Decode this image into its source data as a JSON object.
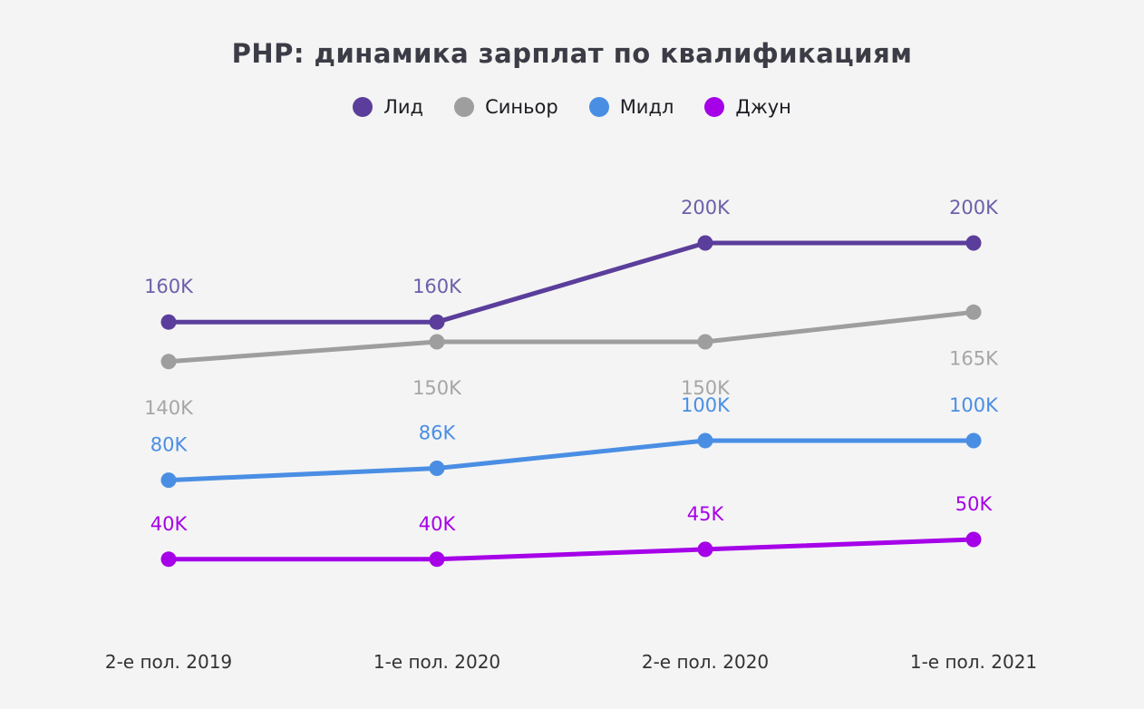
{
  "title": "PHP: динамика зарплат по квалификациям",
  "chart_data": {
    "type": "line",
    "title": "PHP: динамика зарплат по квалификациям",
    "categories": [
      "2-е пол. 2019",
      "1-е пол. 2020",
      "2-е пол. 2020",
      "1-е пол. 2021"
    ],
    "unit": "K",
    "series": [
      {
        "name": "Лид",
        "color": "#5b3e9b",
        "label_color": "#6c60aa",
        "values": [
          160,
          160,
          200,
          200
        ],
        "labels": [
          "160K",
          "160K",
          "200K",
          "200K"
        ],
        "label_side": "above"
      },
      {
        "name": "Синьор",
        "color": "#9e9e9e",
        "label_color": "#a6a6a6",
        "values": [
          140,
          150,
          150,
          165
        ],
        "labels": [
          "140K",
          "150K",
          "150K",
          "165K"
        ],
        "label_side": "below"
      },
      {
        "name": "Мидл",
        "color": "#4a8ee4",
        "label_color": "#4a8ee4",
        "values": [
          80,
          86,
          100,
          100
        ],
        "labels": [
          "80K",
          "86K",
          "100K",
          "100K"
        ],
        "label_side": "above"
      },
      {
        "name": "Джун",
        "color": "#a500e8",
        "label_color": "#a500e8",
        "values": [
          40,
          40,
          45,
          50
        ],
        "labels": [
          "40K",
          "40K",
          "45K",
          "50K"
        ],
        "label_side": "above"
      }
    ],
    "ylim": [
      0,
      230
    ],
    "grid": false,
    "legend_position": "top",
    "axis_label_color": "#333333",
    "background": "#f4f4f4"
  }
}
